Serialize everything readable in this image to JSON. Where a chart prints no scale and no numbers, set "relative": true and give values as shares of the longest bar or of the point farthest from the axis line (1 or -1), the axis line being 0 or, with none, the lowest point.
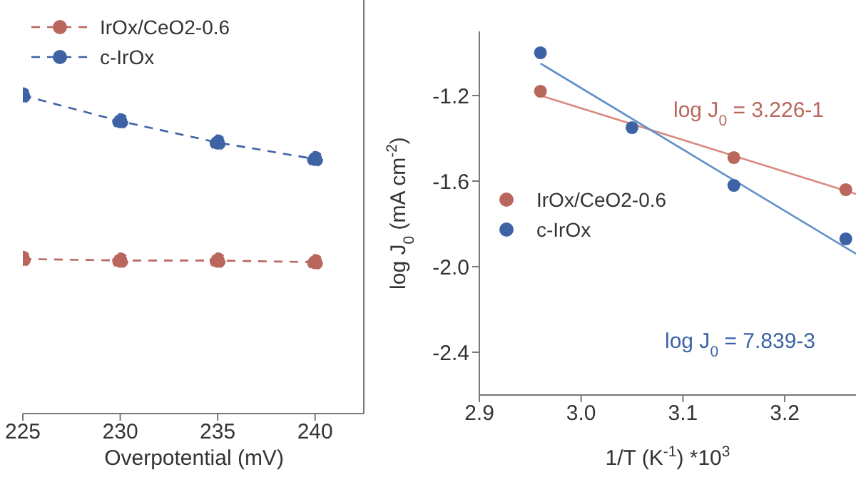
{
  "chart_data": [
    {
      "type": "line",
      "relative": true,
      "xlabel": "Overpotential (mV)",
      "x": [
        225,
        230,
        235,
        240
      ],
      "xlim": [
        225,
        242.5
      ],
      "xticks": [
        225,
        230,
        235,
        240
      ],
      "marker": "circle",
      "line_style": "dashed",
      "legend": "top left",
      "series": [
        {
          "name": "IrOx/CeO2-0.6",
          "color": "#b9665d",
          "values": [
            0.486,
            0.481,
            0.481,
            0.476
          ]
        },
        {
          "name": "c-IrOx",
          "color": "#3d63a5",
          "values": [
            1,
            0.919,
            0.852,
            0.8
          ]
        }
      ]
    },
    {
      "type": "scatter",
      "xlabel": "1/T (K$^{-1}$) *10$^{3}$",
      "ylabel": "log J$_{0}$ (mA cm$^{-2}$)",
      "xlim": [
        2.9,
        3.27
      ],
      "xticks": [
        2.9,
        {
          "value": 3,
          "label": "3.0"
        },
        3.1,
        3.2
      ],
      "ylim": [
        -2.6,
        -0.9
      ],
      "yticks": [
        -1.2,
        -1.6,
        {
          "value": -2,
          "label": "-2.0"
        },
        -2.4
      ],
      "marker": "circle",
      "legend": "left",
      "series": [
        {
          "name": "IrOx/CeO2-0.6",
          "color": "#b9665d",
          "x": [
            2.96,
            3.05,
            3.15,
            3.26
          ],
          "values": [
            -1.18,
            null,
            -1.49,
            -1.64
          ]
        },
        {
          "name": "c-IrOx",
          "color": "#3d63a5",
          "x": [
            2.96,
            3.05,
            3.15,
            3.26
          ],
          "values": [
            -1.0,
            -1.35,
            -1.62,
            -1.87
          ]
        },
        {
          "type": "line",
          "marker": "none",
          "color": "#d98a80",
          "x": [
            2.96,
            3.27
          ],
          "values": [
            -1.2,
            -1.66
          ]
        },
        {
          "type": "line",
          "marker": "none",
          "color": "#5f8fc8",
          "x": [
            2.96,
            3.27
          ],
          "values": [
            -1.05,
            -1.94
          ]
        }
      ],
      "annotations": [
        "log J$_{0}$ = 3.226-1",
        "log J$_{0}$ = 7.839-3"
      ]
    }
  ]
}
